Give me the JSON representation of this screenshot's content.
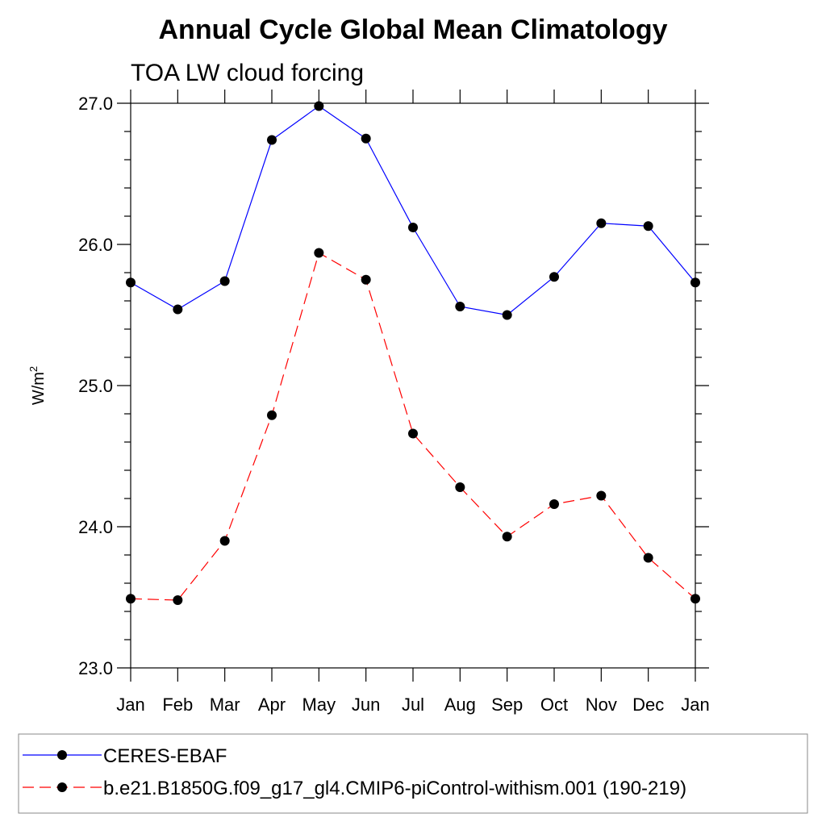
{
  "chart_data": {
    "type": "line",
    "title": "Annual Cycle Global Mean Climatology",
    "subtitle": "TOA LW cloud forcing",
    "xlabel": "",
    "ylabel": "W/m",
    "ylabel_superscript": "2",
    "categories": [
      "Jan",
      "Feb",
      "Mar",
      "Apr",
      "May",
      "Jun",
      "Jul",
      "Aug",
      "Sep",
      "Oct",
      "Nov",
      "Dec",
      "Jan"
    ],
    "ylim": [
      23.0,
      27.0
    ],
    "yticks": [
      "23.0",
      "24.0",
      "25.0",
      "26.0",
      "27.0"
    ],
    "yticks_values": [
      23.0,
      24.0,
      25.0,
      26.0,
      27.0
    ],
    "grid": false,
    "legend_position": "bottom",
    "series": [
      {
        "name": "CERES-EBAF",
        "color": "#0000ff",
        "line_style": "solid",
        "marker": "filled-circle",
        "values": [
          25.73,
          25.54,
          25.74,
          26.74,
          26.98,
          26.75,
          26.12,
          25.56,
          25.5,
          25.77,
          26.15,
          26.13,
          25.73
        ]
      },
      {
        "name": "b.e21.B1850G.f09_g17_gl4.CMIP6-piControl-withism.001 (190-219)",
        "color": "#ff0000",
        "line_style": "dashed",
        "marker": "filled-circle",
        "values": [
          23.49,
          23.48,
          23.9,
          24.79,
          25.94,
          25.75,
          24.66,
          24.28,
          23.93,
          24.16,
          24.22,
          23.78,
          23.49
        ]
      }
    ]
  }
}
